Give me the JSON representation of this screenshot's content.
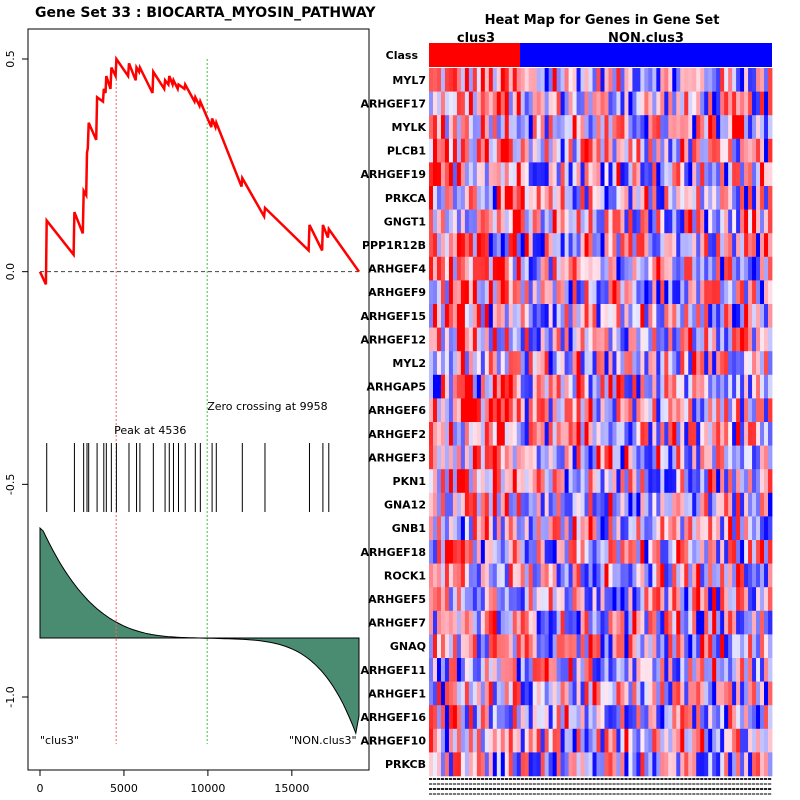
{
  "left_panel": {
    "title": "Gene Set  33 : BIOCARTA_MYOSIN_PATHWAY",
    "peak_label": "Peak at 4536",
    "zero_label": "Zero crossing at 9958",
    "left_class_label": "\"clus3\"",
    "right_class_label": "\"NON.clus3\"",
    "colors": {
      "es_line": "#ff0000",
      "peak_line": "#ff6060",
      "zero_line": "#40c040",
      "ranked_fill": "#4a8c72",
      "baseline": "#444444"
    }
  },
  "heatmap": {
    "title": "Heat Map for Genes in Gene Set",
    "class_row_label": "Class",
    "class_names": [
      "clus3",
      "NON.clus3"
    ],
    "class_colors": [
      "#ff0000",
      "#0000ff"
    ],
    "genes": [
      "MYL7",
      "ARHGEF17",
      "MYLK",
      "PLCB1",
      "ARHGEF19",
      "PRKCA",
      "GNGT1",
      "PPP1R12B",
      "ARHGEF4",
      "ARHGEF9",
      "ARHGEF15",
      "ARHGEF12",
      "MYL2",
      "ARHGAP5",
      "ARHGEF6",
      "ARHGEF2",
      "ARHGEF3",
      "PKN1",
      "GNA12",
      "GNB1",
      "ARHGEF18",
      "ROCK1",
      "ARHGEF5",
      "ARHGEF7",
      "GNAQ",
      "ARHGEF11",
      "ARHGEF1",
      "ARHGEF16",
      "ARHGEF10",
      "PRKCB"
    ]
  },
  "chart_data": {
    "type": "line",
    "title": "Gene Set  33 : BIOCARTA_MYOSIN_PATHWAY",
    "xlabel": "",
    "ylabel": "",
    "xlim": [
      -1000,
      19500
    ],
    "ylim": [
      -1.17,
      0.58
    ],
    "x_ticks": [
      0,
      5000,
      10000,
      15000
    ],
    "y_ticks": [
      -1.0,
      -0.5,
      0.0,
      0.5
    ],
    "total_genes": 18900,
    "peak_position": 4536,
    "zero_crossing": 9958,
    "series": [
      {
        "name": "Enrichment score",
        "x": [
          0,
          350,
          400,
          2000,
          2050,
          2550,
          2600,
          2750,
          2800,
          2850,
          2900,
          3350,
          3400,
          3750,
          3800,
          3900,
          3950,
          4200,
          4250,
          4500,
          4550,
          5250,
          5300,
          5700,
          5750,
          5900,
          5950,
          6700,
          6750,
          7400,
          7450,
          7650,
          7700,
          7900,
          7950,
          8200,
          8250,
          8600,
          8650,
          9200,
          9250,
          9500,
          9550,
          10200,
          10250,
          10450,
          10500,
          12000,
          12050,
          13350,
          13400,
          16000,
          16050,
          16800,
          16850,
          17150,
          17200,
          19000
        ],
        "y": [
          0.0,
          -0.03,
          0.12,
          0.04,
          0.14,
          0.09,
          0.19,
          0.18,
          0.28,
          0.29,
          0.35,
          0.31,
          0.41,
          0.4,
          0.43,
          0.42,
          0.46,
          0.43,
          0.48,
          0.46,
          0.5,
          0.46,
          0.49,
          0.45,
          0.48,
          0.47,
          0.48,
          0.42,
          0.47,
          0.43,
          0.45,
          0.44,
          0.46,
          0.44,
          0.45,
          0.43,
          0.44,
          0.43,
          0.44,
          0.4,
          0.41,
          0.39,
          0.4,
          0.34,
          0.36,
          0.34,
          0.35,
          0.2,
          0.22,
          0.13,
          0.15,
          0.05,
          0.11,
          0.05,
          0.11,
          0.08,
          0.1,
          0.0
        ]
      },
      {
        "name": "Gene hits",
        "x": [
          400,
          2050,
          2600,
          2800,
          2900,
          3400,
          3800,
          3950,
          4250,
          4550,
          5300,
          5750,
          5950,
          6750,
          7450,
          7700,
          7950,
          8250,
          8650,
          9250,
          9550,
          10250,
          10500,
          12050,
          13400,
          16050,
          16850,
          17200
        ]
      }
    ]
  }
}
